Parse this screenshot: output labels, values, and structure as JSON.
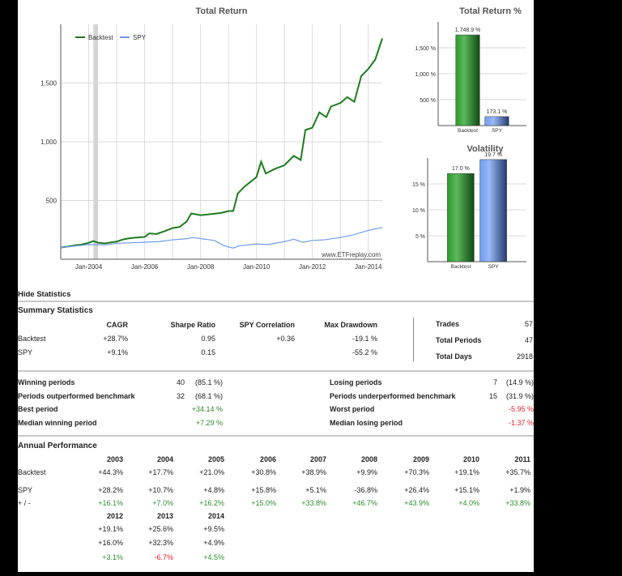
{
  "chart_data": [
    {
      "type": "line",
      "title": "Total Return",
      "xlabel": "",
      "ylabel": "",
      "x_ticks": [
        "Jan-2004",
        "Jan-2006",
        "Jan-2008",
        "Jan-2010",
        "Jan-2012",
        "Jan-2014"
      ],
      "y_ticks": [
        "500",
        "1,000",
        "1,500"
      ],
      "ylim": [
        0,
        2000
      ],
      "xlim": [
        "2003-01",
        "2014-07"
      ],
      "grid": true,
      "legend_placement": "top-left",
      "watermark": "www.ETFreplay.com",
      "shaded_region": [
        "2004-03",
        "2004-05"
      ],
      "series": [
        {
          "name": "Backtest",
          "color": "#1e7a1e",
          "points": [
            [
              "2003-01",
              100
            ],
            [
              "2003-04",
              108
            ],
            [
              "2003-07",
              118
            ],
            [
              "2003-10",
              125
            ],
            [
              "2004-01",
              140
            ],
            [
              "2004-03",
              155
            ],
            [
              "2004-05",
              140
            ],
            [
              "2004-08",
              135
            ],
            [
              "2004-11",
              145
            ],
            [
              "2005-01",
              150
            ],
            [
              "2005-04",
              170
            ],
            [
              "2005-07",
              180
            ],
            [
              "2005-10",
              185
            ],
            [
              "2006-01",
              190
            ],
            [
              "2006-03",
              220
            ],
            [
              "2006-06",
              215
            ],
            [
              "2006-09",
              235
            ],
            [
              "2007-01",
              265
            ],
            [
              "2007-04",
              275
            ],
            [
              "2007-07",
              320
            ],
            [
              "2007-09",
              390
            ],
            [
              "2008-01",
              375
            ],
            [
              "2008-06",
              385
            ],
            [
              "2008-10",
              395
            ],
            [
              "2009-01",
              410
            ],
            [
              "2009-03",
              410
            ],
            [
              "2009-05",
              560
            ],
            [
              "2009-08",
              620
            ],
            [
              "2010-01",
              700
            ],
            [
              "2010-03",
              830
            ],
            [
              "2010-05",
              730
            ],
            [
              "2010-09",
              770
            ],
            [
              "2011-01",
              800
            ],
            [
              "2011-05",
              880
            ],
            [
              "2011-08",
              845
            ],
            [
              "2011-10",
              1100
            ],
            [
              "2012-01",
              1120
            ],
            [
              "2012-04",
              1250
            ],
            [
              "2012-07",
              1210
            ],
            [
              "2012-09",
              1300
            ],
            [
              "2013-01",
              1330
            ],
            [
              "2013-04",
              1380
            ],
            [
              "2013-07",
              1340
            ],
            [
              "2013-10",
              1560
            ],
            [
              "2014-01",
              1620
            ],
            [
              "2014-04",
              1700
            ],
            [
              "2014-07",
              1880
            ]
          ]
        },
        {
          "name": "SPY",
          "color": "#6f9cf0",
          "points": [
            [
              "2003-01",
              100
            ],
            [
              "2003-07",
              112
            ],
            [
              "2004-01",
              125
            ],
            [
              "2004-08",
              122
            ],
            [
              "2005-01",
              135
            ],
            [
              "2005-07",
              140
            ],
            [
              "2006-01",
              145
            ],
            [
              "2006-07",
              150
            ],
            [
              "2007-01",
              165
            ],
            [
              "2007-07",
              175
            ],
            [
              "2007-10",
              185
            ],
            [
              "2008-03",
              170
            ],
            [
              "2008-07",
              160
            ],
            [
              "2008-11",
              115
            ],
            [
              "2009-03",
              95
            ],
            [
              "2009-06",
              115
            ],
            [
              "2010-01",
              130
            ],
            [
              "2010-06",
              125
            ],
            [
              "2011-01",
              150
            ],
            [
              "2011-05",
              170
            ],
            [
              "2011-09",
              145
            ],
            [
              "2012-01",
              160
            ],
            [
              "2012-06",
              165
            ],
            [
              "2013-01",
              185
            ],
            [
              "2013-07",
              210
            ],
            [
              "2014-01",
              245
            ],
            [
              "2014-07",
              270
            ]
          ]
        }
      ]
    },
    {
      "type": "bar",
      "title": "Total Return %",
      "categories": [
        "Backtest",
        "SPY"
      ],
      "values": [
        1748.9,
        173.1
      ],
      "data_labels": [
        "1,748.9 %",
        "173.1 %"
      ],
      "y_ticks": [
        "500 %",
        "1,000 %",
        "1,500 %"
      ],
      "ylim": [
        0,
        2000
      ],
      "colors": [
        "#1e7a1e",
        "#6f9cf0"
      ],
      "grid": true
    },
    {
      "type": "bar",
      "title": "Volatility",
      "categories": [
        "Backtest",
        "SPY"
      ],
      "values": [
        17.0,
        19.7
      ],
      "data_labels": [
        "17.0 %",
        "19.7 %"
      ],
      "y_ticks": [
        "5 %",
        "10 %",
        "15 %"
      ],
      "ylim": [
        0,
        20
      ],
      "colors": [
        "#1e7a1e",
        "#6f9cf0"
      ],
      "grid": true
    }
  ],
  "stats": {
    "toggle_label": "Hide Statistics",
    "summary_title": "Summary Statistics",
    "summary_headers": [
      "CAGR",
      "Sharpe Ratio",
      "SPY Correlation",
      "Max Drawdown"
    ],
    "summary_rows": [
      {
        "label": "Backtest",
        "values": [
          "+28.7%",
          "0.95",
          "+0.36",
          "-19.1 %"
        ]
      },
      {
        "label": "SPY",
        "values": [
          "+9.1%",
          "0.15",
          "",
          "-55.2 %"
        ]
      }
    ],
    "side": [
      {
        "label": "Trades",
        "value": "57"
      },
      {
        "label": "Total Periods",
        "value": "47"
      },
      {
        "label": "Total Days",
        "value": "2918"
      }
    ],
    "periods_left": [
      {
        "label": "Winning periods",
        "count": "40",
        "pct": "(85.1 %)",
        "color": ""
      },
      {
        "label": "Periods outperformed benchmark",
        "count": "32",
        "pct": "(68.1 %)",
        "color": ""
      },
      {
        "label": "Best period",
        "count": "",
        "pct": "+34.14 %",
        "color": "green"
      },
      {
        "label": "Median winning period",
        "count": "",
        "pct": "+7.29 %",
        "color": "green"
      }
    ],
    "periods_right": [
      {
        "label": "Losing periods",
        "count": "7",
        "pct": "(14.9 %)",
        "color": ""
      },
      {
        "label": "Periods underperformed benchmark",
        "count": "15",
        "pct": "(31.9 %)",
        "color": ""
      },
      {
        "label": "Worst period",
        "count": "",
        "pct": "-5.95 %",
        "color": "red"
      },
      {
        "label": "Median losing period",
        "count": "",
        "pct": "-1.37 %",
        "color": "red"
      }
    ]
  },
  "annual": {
    "title": "Annual Performance",
    "row_labels": [
      "Backtest",
      "SPY",
      "+ / -"
    ],
    "blocks": [
      {
        "years": [
          "2003",
          "2004",
          "2005",
          "2006",
          "2007",
          "2008",
          "2009",
          "2010",
          "2011"
        ],
        "backtest": [
          "+44.3%",
          "+17.7%",
          "+21.0%",
          "+30.8%",
          "+38.9%",
          "+9.9%",
          "+70.3%",
          "+19.1%",
          "+35.7%"
        ],
        "spy": [
          "+28.2%",
          "+10.7%",
          "+4.8%",
          "+15.8%",
          "+5.1%",
          "-36.8%",
          "+26.4%",
          "+15.1%",
          "+1.9%"
        ],
        "diff": [
          "+16.1%",
          "+7.0%",
          "+16.2%",
          "+15.0%",
          "+33.8%",
          "+46.7%",
          "+43.9%",
          "+4.0%",
          "+33.8%"
        ]
      },
      {
        "years": [
          "2012",
          "2013",
          "2014"
        ],
        "backtest": [
          "+19.1%",
          "+25.6%",
          "+9.5%"
        ],
        "spy": [
          "+16.0%",
          "+32.3%",
          "+4.9%"
        ],
        "diff": [
          "+3.1%",
          "-6.7%",
          "+4.5%"
        ]
      }
    ]
  }
}
